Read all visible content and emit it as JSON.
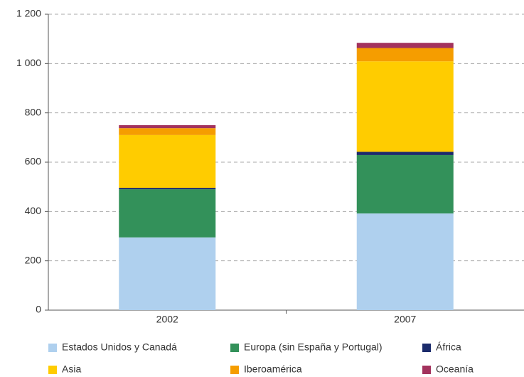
{
  "chart_data": {
    "type": "stacked_bar",
    "categories": [
      "2002",
      "2007"
    ],
    "series": [
      {
        "name": "Estados Unidos y Canadá",
        "color": "#afd0ee",
        "values": [
          295,
          392
        ]
      },
      {
        "name": "Europa (sin España y Portugal)",
        "color": "#33915a",
        "values": [
          195,
          237
        ]
      },
      {
        "name": "África",
        "color": "#1b2b6b",
        "values": [
          6,
          13
        ]
      },
      {
        "name": "Asia",
        "color": "#ffcc00",
        "values": [
          214,
          367
        ]
      },
      {
        "name": "Iberoamérica",
        "color": "#f59d00",
        "values": [
          28,
          54
        ]
      },
      {
        "name": "Oceanía",
        "color": "#a3325d",
        "values": [
          12,
          21
        ]
      }
    ],
    "ylim": [
      0,
      1200
    ],
    "yticks": [
      0,
      200,
      400,
      600,
      800,
      {
        "value": 1000,
        "label": "1 000"
      },
      {
        "value": 1200,
        "label": "1 200"
      }
    ],
    "grid": true
  }
}
